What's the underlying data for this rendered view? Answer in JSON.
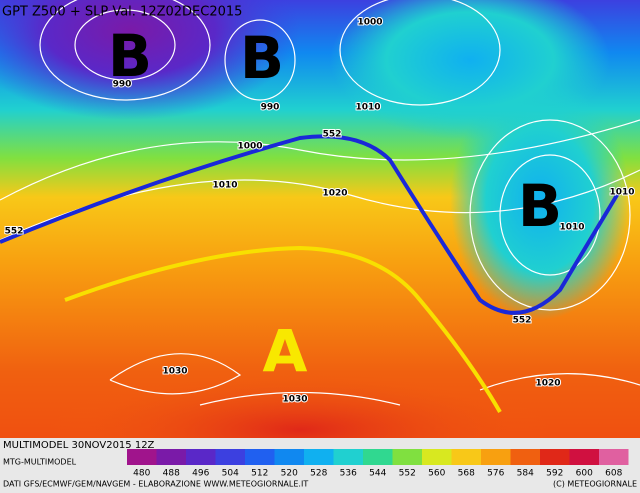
{
  "map": {
    "title": "GPT Z500 + SLP Val. 12Z02DEC2015",
    "centers": [
      "B",
      "B",
      "B",
      "A"
    ],
    "contour_labels": [
      "1000",
      "990",
      "990",
      "1010",
      "1000",
      "552",
      "1010",
      "1020",
      "552",
      "1010",
      "1010",
      "552",
      "1030",
      "1030",
      "1020"
    ]
  },
  "legend": {
    "run": "MULTIMODEL 30NOV2015 12Z",
    "model": "MTG-MULTIMODEL",
    "values": [
      480,
      488,
      496,
      504,
      512,
      520,
      528,
      536,
      544,
      552,
      560,
      568,
      576,
      584,
      592,
      600,
      608
    ],
    "colors": [
      "#a0148c",
      "#7a1aa8",
      "#5a28c8",
      "#3c40e0",
      "#2060f0",
      "#1088f0",
      "#10b0f0",
      "#20d0d0",
      "#30d890",
      "#80e040",
      "#d8e820",
      "#f8c818",
      "#f8a010",
      "#f06010",
      "#e02818",
      "#d01040",
      "#e060a0"
    ]
  },
  "footer": {
    "sources": "DATI GFS/ECMWF/GEM/NAVGEM - ELABORAZIONE WWW.METEOGIORNALE.IT",
    "copyright": "(C) METEOGIORNALE"
  }
}
